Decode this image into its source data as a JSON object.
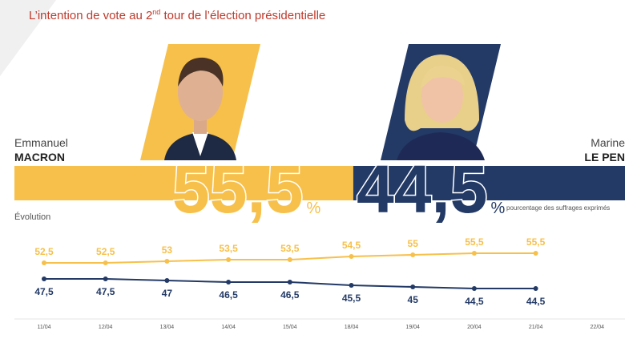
{
  "chart_data": {
    "type": "line",
    "title_parts": [
      "L’intention de vote au 2",
      "nd",
      " tour de l’élection présidentielle"
    ],
    "subtitle": "Évolution",
    "note": "pourcentage des suffrages exprimés",
    "unit": "%",
    "categories": [
      "11/04",
      "12/04",
      "13/04",
      "14/04",
      "15/04",
      "18/04",
      "19/04",
      "20/04",
      "21/04",
      "22/04"
    ],
    "series": [
      {
        "first_name": "Emmanuel",
        "name": "MACRON",
        "color": "#f7c04a",
        "total": 55.5,
        "total_label": "55,5",
        "values": [
          52.5,
          52.5,
          53,
          53.5,
          53.5,
          54.5,
          55,
          55.5,
          55.5,
          null
        ],
        "value_labels": [
          "52,5",
          "52,5",
          "53",
          "53,5",
          "53,5",
          "54,5",
          "55",
          "55,5",
          "55,5",
          null
        ]
      },
      {
        "first_name": "Marine",
        "name": "LE PEN",
        "color": "#233a66",
        "total": 44.5,
        "total_label": "44,5",
        "values": [
          47.5,
          47.5,
          47,
          46.5,
          46.5,
          45.5,
          45,
          44.5,
          44.5,
          null
        ],
        "value_labels": [
          "47,5",
          "47,5",
          "47",
          "46,5",
          "46,5",
          "45,5",
          "45",
          "44,5",
          "44,5",
          null
        ]
      }
    ]
  }
}
